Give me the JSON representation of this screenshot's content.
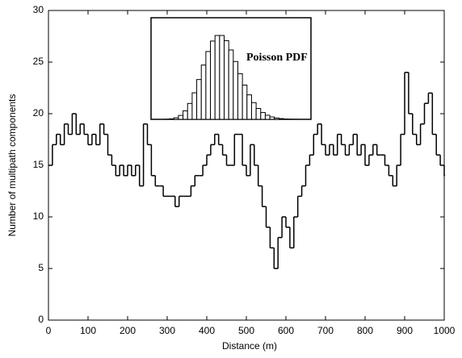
{
  "chart_data": {
    "type": "step",
    "xlabel": "Distance (m)",
    "ylabel": "Number of multipath components",
    "x": [
      0,
      10,
      20,
      30,
      40,
      50,
      60,
      70,
      80,
      90,
      100,
      110,
      120,
      130,
      140,
      150,
      160,
      170,
      180,
      190,
      200,
      210,
      220,
      230,
      240,
      250,
      260,
      270,
      280,
      290,
      300,
      310,
      320,
      330,
      340,
      350,
      360,
      370,
      380,
      390,
      400,
      410,
      420,
      430,
      440,
      450,
      460,
      470,
      480,
      490,
      500,
      510,
      520,
      530,
      540,
      550,
      560,
      570,
      580,
      590,
      600,
      610,
      620,
      630,
      640,
      650,
      660,
      670,
      680,
      690,
      700,
      710,
      720,
      730,
      740,
      750,
      760,
      770,
      780,
      790,
      800,
      810,
      820,
      830,
      840,
      850,
      860,
      870,
      880,
      890,
      900,
      910,
      920,
      930,
      940,
      950,
      960,
      970,
      980,
      990,
      1000
    ],
    "values": [
      15,
      17,
      18,
      17,
      19,
      18,
      20,
      18,
      19,
      18,
      17,
      18,
      17,
      19,
      18,
      16,
      15,
      14,
      15,
      14,
      15,
      14,
      15,
      13,
      19,
      17,
      14,
      13,
      13,
      12,
      12,
      12,
      11,
      12,
      12,
      12,
      13,
      14,
      14,
      15,
      16,
      17,
      18,
      17,
      16,
      15,
      15,
      18,
      18,
      15,
      14,
      17,
      15,
      13,
      11,
      9,
      7,
      5,
      8,
      10,
      9,
      7,
      10,
      12,
      13,
      15,
      16,
      18,
      19,
      17,
      16,
      17,
      16,
      18,
      17,
      16,
      17,
      18,
      16,
      17,
      15,
      16,
      17,
      16,
      16,
      15,
      14,
      13,
      15,
      18,
      24,
      20,
      18,
      17,
      19,
      21,
      22,
      18,
      16,
      15,
      14
    ],
    "color": "#000000",
    "xlim": [
      0,
      1000
    ],
    "xticks": [
      0,
      100,
      200,
      300,
      400,
      500,
      600,
      700,
      800,
      900,
      1000
    ],
    "ylim": [
      0,
      30
    ],
    "yticks": [
      0,
      5,
      10,
      15,
      20,
      25,
      30
    ],
    "inset": {
      "type": "bar",
      "label": "Poisson PDF",
      "values": [
        0,
        0,
        0,
        0.2,
        0.6,
        1.9,
        4.8,
        10.4,
        19.4,
        32.4,
        48.6,
        66.3,
        82.8,
        95.6,
        102.4,
        102.4,
        96,
        84.7,
        70.6,
        55.7,
        41.8,
        29.9,
        20.4,
        13.3,
        8.3,
        5,
        2.9,
        1.6,
        0.9,
        0.4,
        0.2,
        0.1,
        0,
        0,
        0
      ]
    }
  }
}
